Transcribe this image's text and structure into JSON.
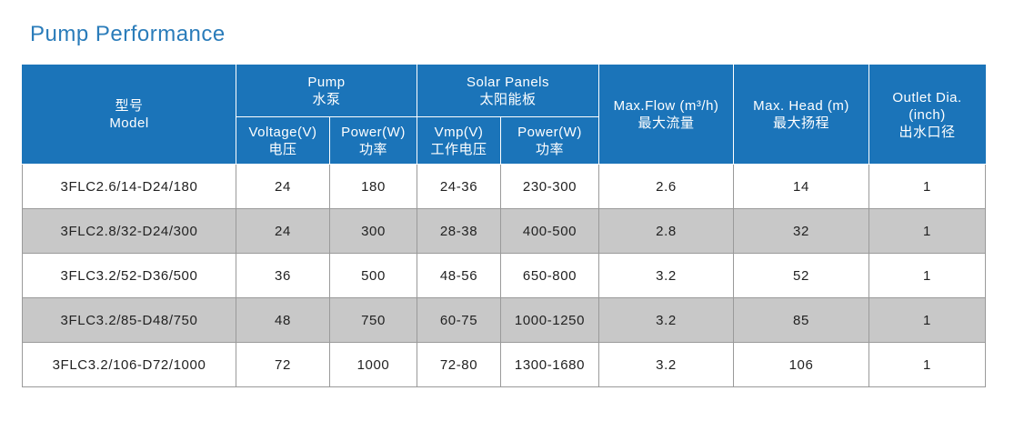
{
  "title": "Pump Performance",
  "table": {
    "header": {
      "model": [
        "型号",
        "Model"
      ],
      "pump": [
        "Pump",
        "水泵"
      ],
      "solar": [
        "Solar Panels",
        "太阳能板"
      ],
      "flow": [
        "Max.Flow (m³/h)",
        "最大流量"
      ],
      "head": [
        "Max. Head (m)",
        "最大扬程"
      ],
      "outlet": [
        "Outlet Dia.",
        "(inch)",
        "出水口径"
      ],
      "sub": [
        [
          "Voltage(V)",
          "电压"
        ],
        [
          "Power(W)",
          "功率"
        ],
        [
          "Vmp(V)",
          "工作电压"
        ],
        [
          "Power(W)",
          "功率"
        ]
      ]
    },
    "rows": [
      [
        "3FLC2.6/14-D24/180",
        "24",
        "180",
        "24-36",
        "230-300",
        "2.6",
        "14",
        "1"
      ],
      [
        "3FLC2.8/32-D24/300",
        "24",
        "300",
        "28-38",
        "400-500",
        "2.8",
        "32",
        "1"
      ],
      [
        "3FLC3.2/52-D36/500",
        "36",
        "500",
        "48-56",
        "650-800",
        "3.2",
        "52",
        "1"
      ],
      [
        "3FLC3.2/85-D48/750",
        "48",
        "750",
        "60-75",
        "1000-1250",
        "3.2",
        "85",
        "1"
      ],
      [
        "3FLC3.2/106-D72/1000",
        "72",
        "1000",
        "72-80",
        "1300-1680",
        "3.2",
        "106",
        "1"
      ]
    ]
  }
}
